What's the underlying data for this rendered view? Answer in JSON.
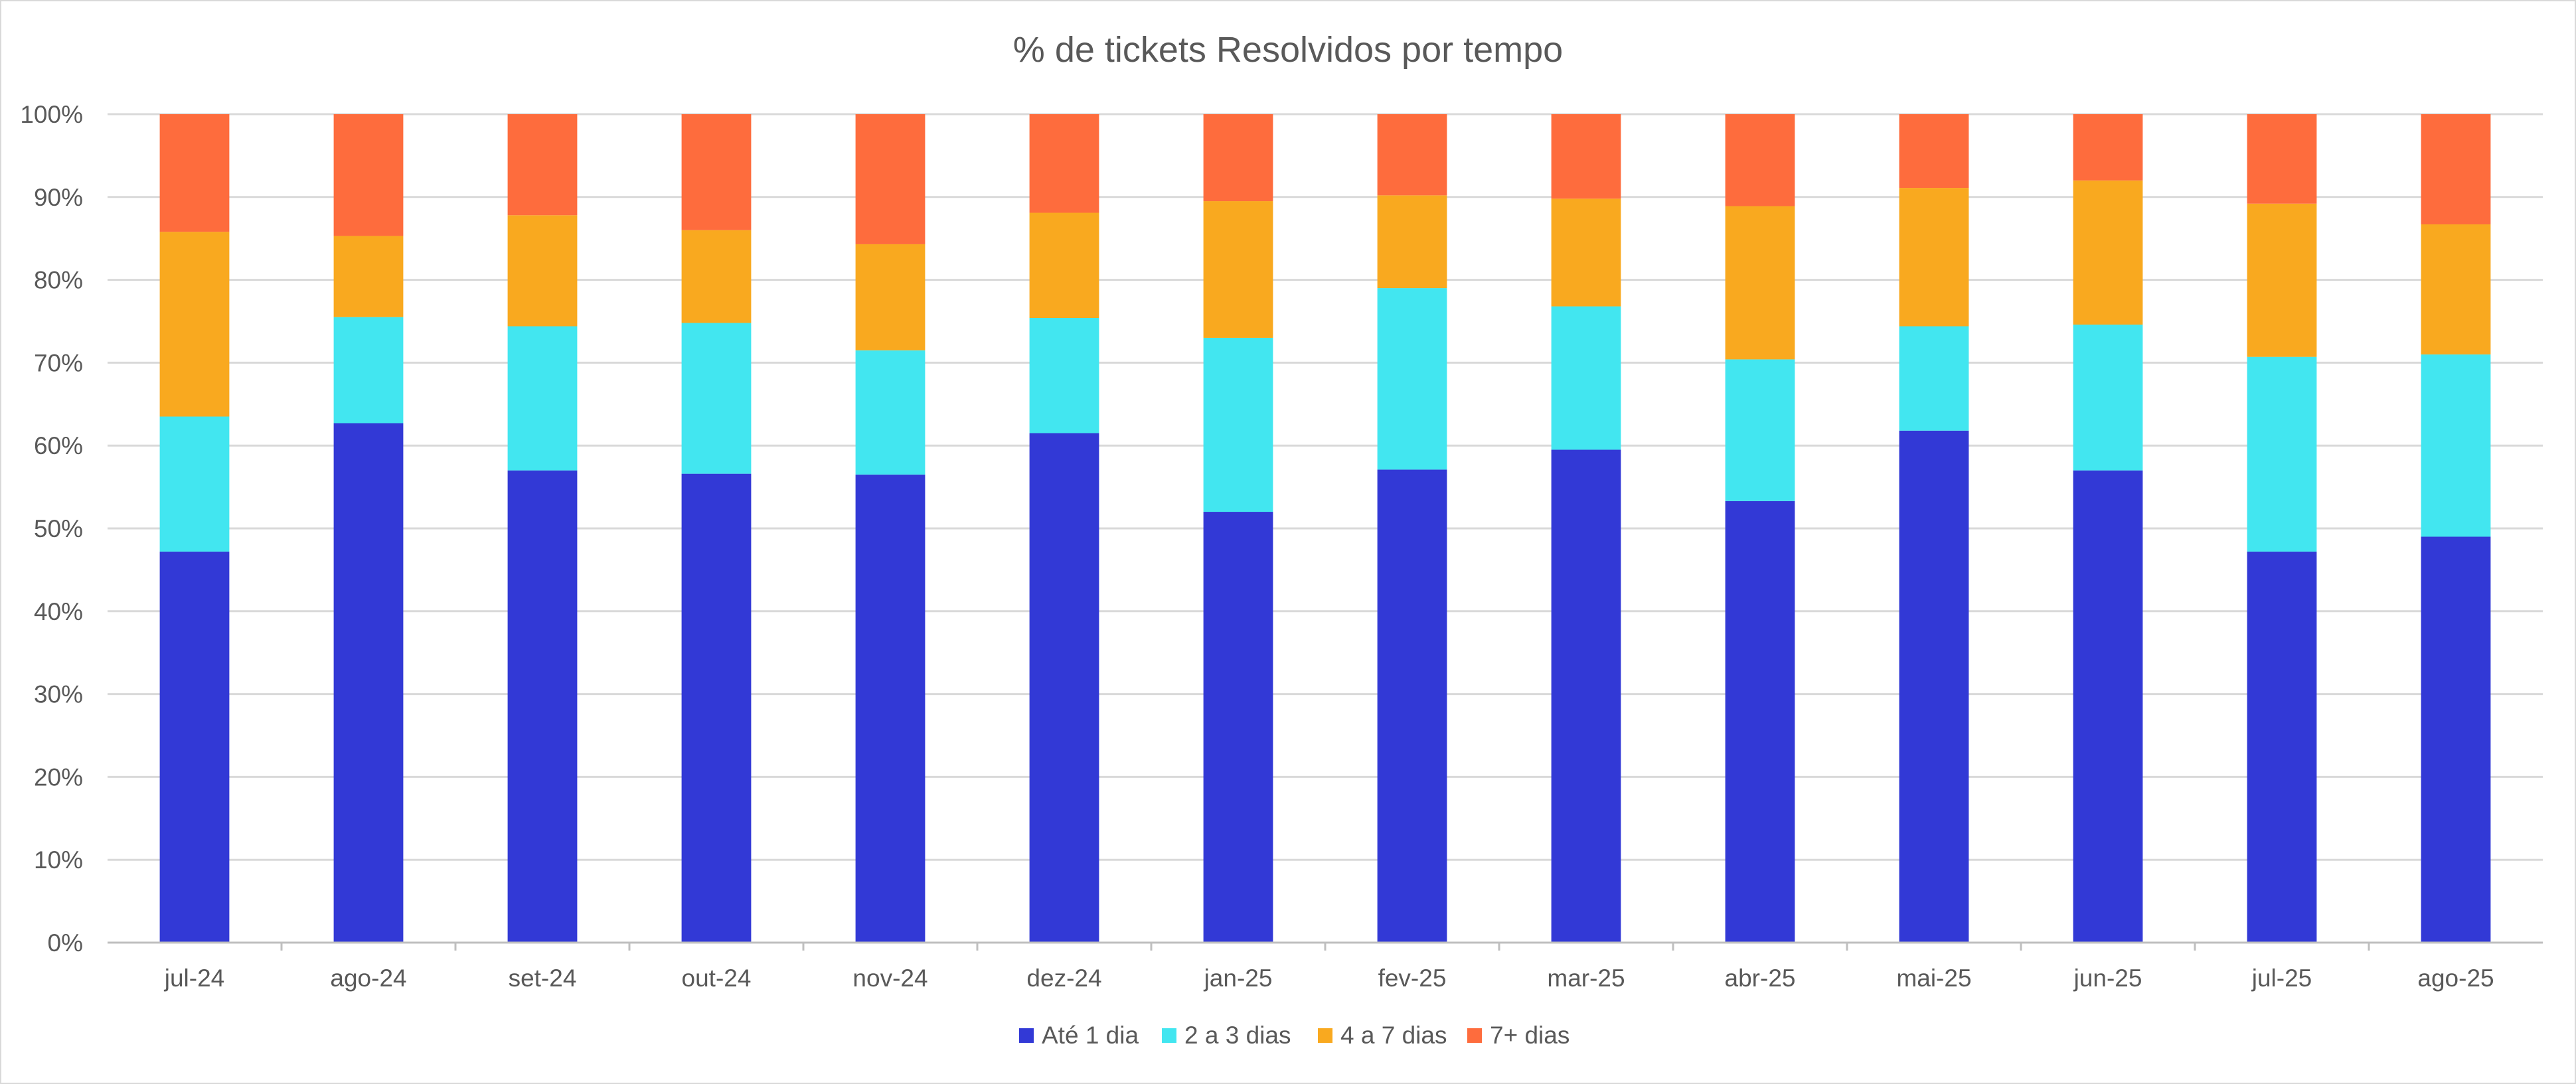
{
  "chart_data": {
    "type": "bar",
    "stacked": true,
    "title": "% de tickets Resolvidos por tempo",
    "xlabel": "",
    "ylabel": "",
    "ylim": [
      0,
      100
    ],
    "y_ticks": [
      "0%",
      "10%",
      "20%",
      "30%",
      "40%",
      "50%",
      "60%",
      "70%",
      "80%",
      "90%",
      "100%"
    ],
    "grid": true,
    "legend_position": "bottom",
    "categories": [
      "jul-24",
      "ago-24",
      "set-24",
      "out-24",
      "nov-24",
      "dez-24",
      "jan-25",
      "fev-25",
      "mar-25",
      "abr-25",
      "mai-25",
      "jun-25",
      "jul-25",
      "ago-25"
    ],
    "series": [
      {
        "name": "Até 1 dia",
        "color": "#3239d6",
        "values": [
          47.2,
          62.7,
          57.0,
          56.6,
          56.5,
          61.5,
          52.0,
          57.1,
          59.5,
          53.3,
          61.8,
          57.0,
          47.2,
          49.0
        ]
      },
      {
        "name": "2 a 3 dias",
        "color": "#42e6f0",
        "values": [
          16.3,
          12.8,
          17.4,
          18.2,
          15.0,
          13.9,
          21.0,
          21.9,
          17.3,
          17.1,
          12.6,
          17.6,
          23.5,
          22.0
        ]
      },
      {
        "name": "4 a 7 dias",
        "color": "#f9a91f",
        "values": [
          22.3,
          9.8,
          13.4,
          11.2,
          12.8,
          12.7,
          16.5,
          11.2,
          13.0,
          18.5,
          16.7,
          17.4,
          18.5,
          15.7
        ]
      },
      {
        "name": "7+ dias",
        "color": "#fe6c3d",
        "values": [
          14.2,
          14.7,
          12.2,
          14.0,
          15.7,
          11.9,
          10.5,
          9.8,
          10.2,
          11.1,
          8.9,
          8.0,
          10.8,
          13.3
        ]
      }
    ]
  }
}
